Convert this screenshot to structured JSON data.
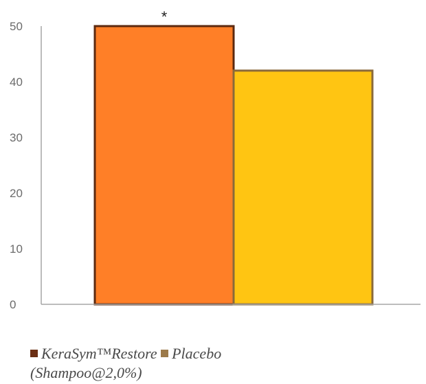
{
  "chart_data": {
    "type": "bar",
    "categories": [
      "KeraSym™Restore (Shampoo@2,0%)",
      "Placebo"
    ],
    "values": [
      50,
      42
    ],
    "title": "",
    "xlabel": "",
    "ylabel": "",
    "ylim": [
      0,
      50
    ],
    "yticks": [
      "0",
      "10",
      "20",
      "30",
      "40",
      "50"
    ],
    "grid": false,
    "legend_placement": "bottom-left",
    "annotations": [
      {
        "category": "KeraSym™Restore (Shampoo@2,0%)",
        "text": "*"
      }
    ],
    "colors": {
      "bar_fill": [
        "#ff7f27",
        "#ffc512"
      ],
      "bar_stroke": [
        "#5c2a10",
        "#8a6a3a"
      ],
      "legend_swatch": [
        "#6b2f14",
        "#9c7a4a"
      ],
      "axis": "#a6a6a6"
    }
  },
  "legend": {
    "items": [
      {
        "label_line1": "KeraSym™Restore",
        "label_line2": "(Shampoo@2,0%)"
      },
      {
        "label_line1": "Placebo"
      }
    ]
  }
}
